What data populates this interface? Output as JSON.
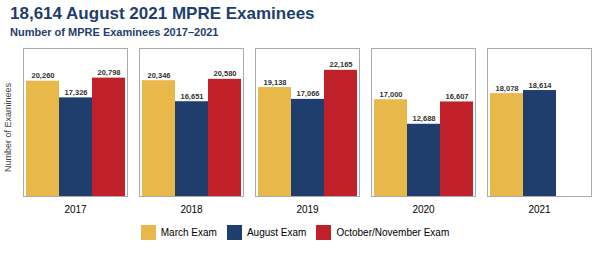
{
  "chart_data": {
    "type": "bar",
    "title": "18,614 August 2021 MPRE Examinees",
    "subtitle": "Number of MPRE Examinees 2017–2021",
    "ylabel": "Number of Examinees",
    "categories": [
      "2017",
      "2018",
      "2019",
      "2020",
      "2021"
    ],
    "series": [
      {
        "name": "March Exam",
        "color": "#E8B84B",
        "values": [
          20260,
          20346,
          19138,
          17000,
          18078
        ],
        "value_labels": [
          "20,260",
          "20,346",
          "19,138",
          "17,000",
          "18,078"
        ]
      },
      {
        "name": "August Exam",
        "color": "#1F3E6E",
        "values": [
          17326,
          16651,
          17066,
          12688,
          18614
        ],
        "value_labels": [
          "17,326",
          "16,651",
          "17,066",
          "12,688",
          "18,614"
        ]
      },
      {
        "name": "October/November Exam",
        "color": "#C0202A",
        "values": [
          20798,
          20580,
          22165,
          16607,
          null
        ],
        "value_labels": [
          "20,798",
          "20,580",
          "22,165",
          "16,607",
          null
        ]
      }
    ],
    "ylim": [
      0,
      26000
    ],
    "yticks": [],
    "tick_labels": "x",
    "grid": false,
    "data_labels": true,
    "legend": "bottom"
  }
}
